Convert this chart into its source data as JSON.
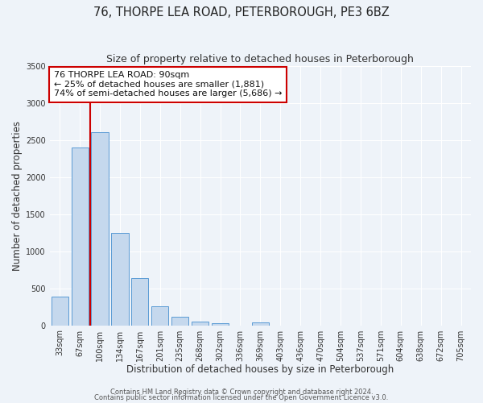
{
  "title": "76, THORPE LEA ROAD, PETERBOROUGH, PE3 6BZ",
  "subtitle": "Size of property relative to detached houses in Peterborough",
  "xlabel": "Distribution of detached houses by size in Peterborough",
  "ylabel": "Number of detached properties",
  "bar_labels": [
    "33sqm",
    "67sqm",
    "100sqm",
    "134sqm",
    "167sqm",
    "201sqm",
    "235sqm",
    "268sqm",
    "302sqm",
    "336sqm",
    "369sqm",
    "403sqm",
    "436sqm",
    "470sqm",
    "504sqm",
    "537sqm",
    "571sqm",
    "604sqm",
    "638sqm",
    "672sqm",
    "705sqm"
  ],
  "bar_values": [
    390,
    2400,
    2600,
    1250,
    640,
    260,
    110,
    55,
    30,
    0,
    40,
    0,
    0,
    0,
    0,
    0,
    0,
    0,
    0,
    0,
    0
  ],
  "bar_color": "#c5d8ed",
  "bar_edge_color": "#5b9bd5",
  "ylim": [
    0,
    3500
  ],
  "yticks": [
    0,
    500,
    1000,
    1500,
    2000,
    2500,
    3000,
    3500
  ],
  "vline_x": 1.5,
  "vline_color": "#cc0000",
  "annotation_line1": "76 THORPE LEA ROAD: 90sqm",
  "annotation_line2": "← 25% of detached houses are smaller (1,881)",
  "annotation_line3": "74% of semi-detached houses are larger (5,686) →",
  "annotation_box_color": "#ffffff",
  "annotation_box_edge": "#cc0000",
  "footer1": "Contains HM Land Registry data © Crown copyright and database right 2024.",
  "footer2": "Contains public sector information licensed under the Open Government Licence v3.0.",
  "bg_color": "#eef3f9",
  "plot_bg_color": "#eef3f9",
  "grid_color": "#ffffff",
  "title_fontsize": 10.5,
  "subtitle_fontsize": 9,
  "label_fontsize": 8.5,
  "tick_fontsize": 7,
  "annotation_fontsize": 8,
  "footer_fontsize": 6
}
